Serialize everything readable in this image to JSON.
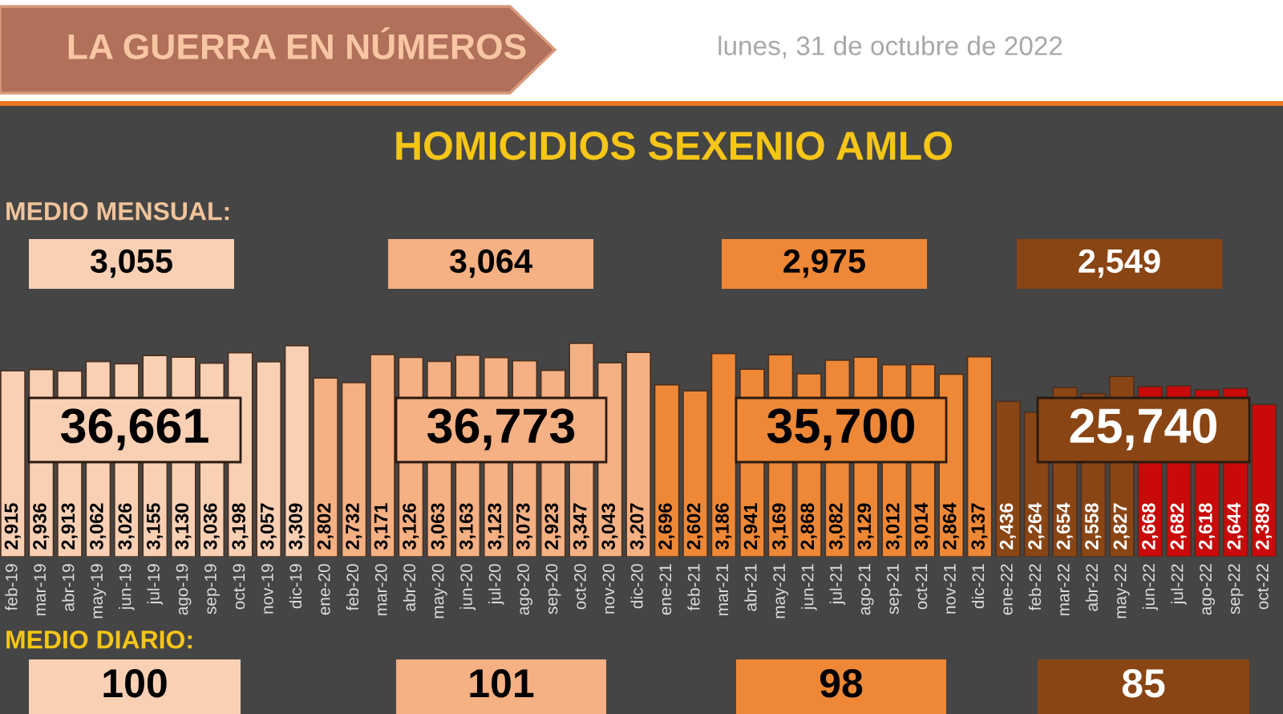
{
  "chart_data": {
    "type": "bar",
    "title": "HOMICIDIOS SEXENIO AMLO",
    "subtitle": "lunes, 31 de octubre de 2022",
    "categories": [
      "feb-19",
      "mar-19",
      "abr-19",
      "may-19",
      "jun-19",
      "jul-19",
      "ago-19",
      "sep-19",
      "oct-19",
      "nov-19",
      "dic-19",
      "ene-20",
      "feb-20",
      "mar-20",
      "abr-20",
      "may-20",
      "jun-20",
      "jul-20",
      "ago-20",
      "sep-20",
      "oct-20",
      "nov-20",
      "dic-20",
      "ene-21",
      "feb-21",
      "mar-21",
      "abr-21",
      "may-21",
      "jun-21",
      "jul-21",
      "ago-21",
      "sep-21",
      "oct-21",
      "nov-21",
      "dic-21",
      "ene-22",
      "feb-22",
      "mar-22",
      "abr-22",
      "may-22",
      "jun-22",
      "jul-22",
      "ago-22",
      "sep-22",
      "oct-22"
    ],
    "values": [
      2915,
      2936,
      2913,
      3062,
      3026,
      3155,
      3130,
      3036,
      3198,
      3057,
      3309,
      2802,
      2732,
      3171,
      3126,
      3063,
      3163,
      3123,
      3073,
      2923,
      3347,
      3043,
      3207,
      2696,
      2602,
      3186,
      2941,
      3169,
      2868,
      3082,
      3129,
      3012,
      3014,
      2864,
      3137,
      2436,
      2264,
      2654,
      2558,
      2827,
      2668,
      2682,
      2618,
      2644,
      2389
    ],
    "value_labels": [
      "2,915",
      "2,936",
      "2,913",
      "3,062",
      "3,026",
      "3,155",
      "3,130",
      "3,036",
      "3,198",
      "3,057",
      "3,309",
      "2,802",
      "2,732",
      "3,171",
      "3,126",
      "3,063",
      "3,163",
      "3,123",
      "3,073",
      "2,923",
      "3,347",
      "3,043",
      "3,207",
      "2,696",
      "2,602",
      "3,186",
      "2,941",
      "3,169",
      "2,868",
      "3,082",
      "3,129",
      "3,012",
      "3,014",
      "2,864",
      "3,137",
      "2,436",
      "2,264",
      "2,654",
      "2,558",
      "2,827",
      "2,668",
      "2,682",
      "2,618",
      "2,644",
      "2,389"
    ],
    "colors": [
      "#f9d0b4",
      "#f9d0b4",
      "#f9d0b4",
      "#f9d0b4",
      "#f9d0b4",
      "#f9d0b4",
      "#f9d0b4",
      "#f9d0b4",
      "#f9d0b4",
      "#f9d0b4",
      "#f9d0b4",
      "#f5b083",
      "#f5b083",
      "#f5b083",
      "#f5b083",
      "#f5b083",
      "#f5b083",
      "#f5b083",
      "#f5b083",
      "#f5b083",
      "#f5b083",
      "#f5b083",
      "#f5b083",
      "#ee8836",
      "#ee8836",
      "#ee8836",
      "#ee8836",
      "#ee8836",
      "#ee8836",
      "#ee8836",
      "#ee8836",
      "#ee8836",
      "#ee8836",
      "#ee8836",
      "#ee8836",
      "#8a4514",
      "#8a4514",
      "#8a4514",
      "#8a4514",
      "#8a4514",
      "#c80a0a",
      "#c80a0a",
      "#c80a0a",
      "#c80a0a",
      "#c80a0a"
    ],
    "annotations": [
      "LA GUERRA EN NÚMEROS",
      "MEDIO MENSUAL:",
      "3,055",
      "3,064",
      "2,975",
      "2,549",
      "36,661",
      "36,773",
      "35,700",
      "25,740",
      "MEDIO DIARIO:",
      "100",
      "101",
      "98",
      "85"
    ]
  }
}
